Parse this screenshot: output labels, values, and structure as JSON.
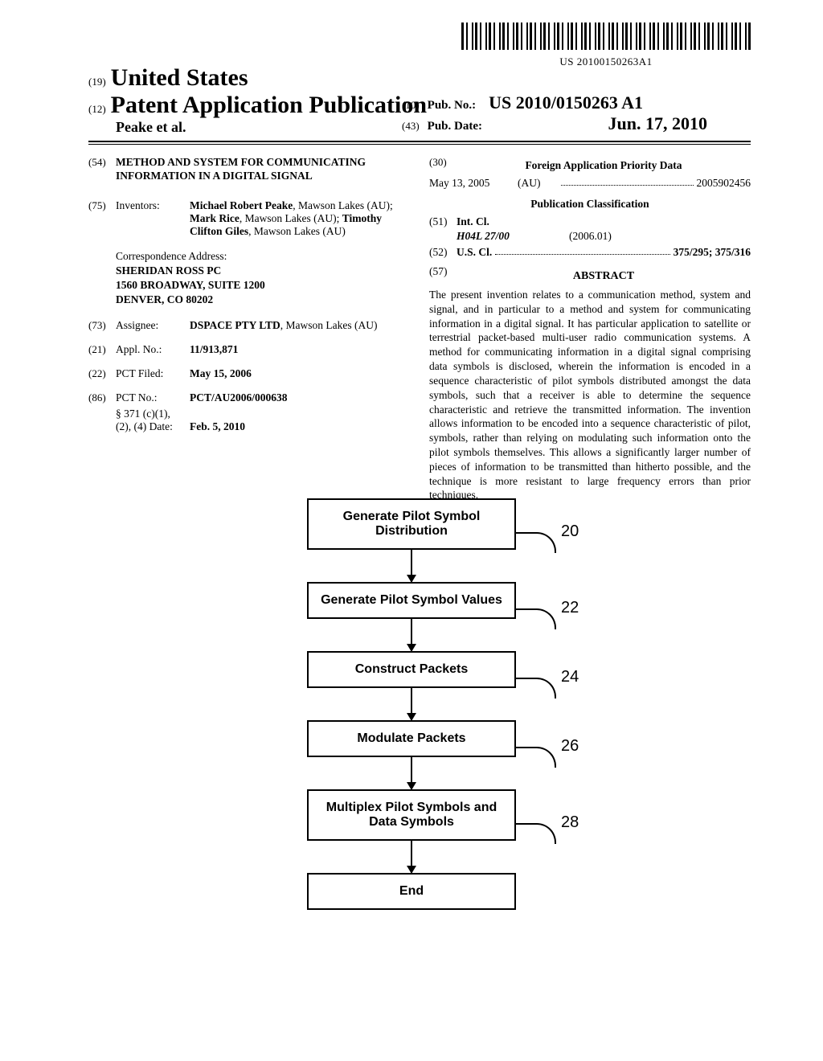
{
  "barcode_text": "US 20100150263A1",
  "header": {
    "code19": "(19)",
    "country": "United States",
    "code12": "(12)",
    "doc_type": "Patent Application Publication",
    "authors_line": "Peake et al.",
    "code10": "(10)",
    "pubno_label": "Pub. No.:",
    "pubno": "US 2010/0150263 A1",
    "code43": "(43)",
    "pubdate_label": "Pub. Date:",
    "pubdate": "Jun. 17, 2010"
  },
  "left": {
    "f54_code": "(54)",
    "f54_title": "METHOD AND SYSTEM FOR COMMUNICATING INFORMATION IN A DIGITAL SIGNAL",
    "f75_code": "(75)",
    "f75_label": "Inventors:",
    "inventors_html": "<b>Michael Robert Peake</b>, Mawson Lakes (AU); <b>Mark Rice</b>, Mawson Lakes (AU); <b>Timothy Clifton Giles</b>, Mawson Lakes (AU)",
    "corresp_label": "Correspondence Address:",
    "corresp_name": "SHERIDAN ROSS PC",
    "corresp_addr1": "1560 BROADWAY, SUITE 1200",
    "corresp_addr2": "DENVER, CO 80202",
    "f73_code": "(73)",
    "f73_label": "Assignee:",
    "assignee": "<b>DSPACE PTY LTD</b>, Mawson Lakes (AU)",
    "f21_code": "(21)",
    "f21_label": "Appl. No.:",
    "applno": "11/913,871",
    "f22_code": "(22)",
    "f22_label": "PCT Filed:",
    "pctfiled": "May 15, 2006",
    "f86_code": "(86)",
    "f86_label": "PCT No.:",
    "pctno": "PCT/AU2006/000638",
    "s371_label": "§ 371 (c)(1),\n(2), (4) Date:",
    "s371_date": "Feb. 5, 2010"
  },
  "right": {
    "f30_code": "(30)",
    "f30_heading": "Foreign Application Priority Data",
    "foreign_date": "May 13, 2005",
    "foreign_country": "(AU)",
    "foreign_num": "2005902456",
    "pubclass_heading": "Publication Classification",
    "f51_code": "(51)",
    "f51_label": "Int. Cl.",
    "intcl_class": "H04L 27/00",
    "intcl_year": "(2006.01)",
    "f52_code": "(52)",
    "f52_label": "U.S. Cl.",
    "uscl_value": "375/295; 375/316",
    "f57_code": "(57)",
    "abstract_heading": "ABSTRACT",
    "abstract": "The present invention relates to a communication method, system and signal, and in particular to a method and system for communicating information in a digital signal. It has particular application to satellite or terrestrial packet-based multi-user radio communication systems. A method for communicating information in a digital signal comprising data symbols is disclosed, wherein the information is encoded in a sequence characteristic of pilot symbols distributed amongst the data symbols, such that a receiver is able to determine the sequence characteristic and retrieve the transmitted information. The invention allows information to be encoded into a sequence characteristic of pilot, symbols, rather than relying on modulating such information onto the pilot symbols themselves. This allows a significantly larger number of pieces of information to be transmitted than hitherto possible, and the technique is more resistant to large frequency errors than prior techniques."
  },
  "flowchart": {
    "boxes": [
      {
        "label": "Generate Pilot Symbol Distribution",
        "ref": "20"
      },
      {
        "label": "Generate Pilot Symbol Values",
        "ref": "22"
      },
      {
        "label": "Construct Packets",
        "ref": "24"
      },
      {
        "label": "Modulate Packets",
        "ref": "26"
      },
      {
        "label": "Multiplex Pilot Symbols and Data Symbols",
        "ref": "28"
      },
      {
        "label": "End",
        "ref": ""
      }
    ]
  }
}
